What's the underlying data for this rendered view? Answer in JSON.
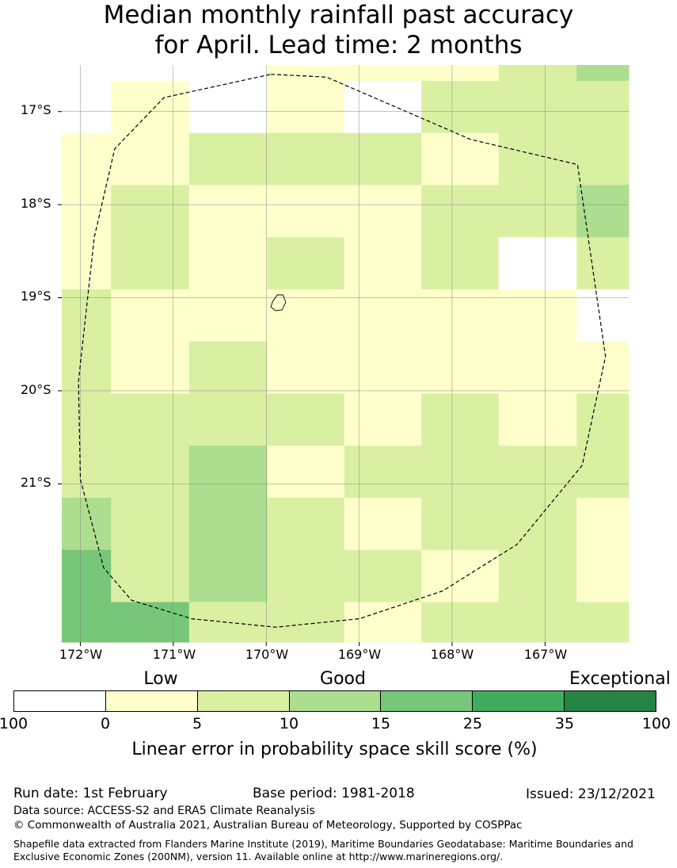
{
  "title": {
    "line1": "Median monthly rainfall past accuracy",
    "line2": "for April. Lead time: 2 months"
  },
  "map": {
    "lat_labels": [
      "17°S",
      "18°S",
      "19°S",
      "20°S",
      "21°S"
    ],
    "lon_labels": [
      "172°W",
      "171°W",
      "170°W",
      "169°W",
      "168°W",
      "167°W"
    ],
    "lon_range": [
      -172.2,
      -166.1
    ],
    "lat_range": [
      -22.7,
      -16.5
    ],
    "cell_rows_top_lat": [
      -16.5,
      -16.67,
      -17.23,
      -17.79,
      -18.35,
      -18.91,
      -19.47,
      -20.03,
      -20.59,
      -21.15,
      -21.71,
      -22.27,
      -22.7
    ],
    "cell_cols_left_lon": [
      -172.2,
      -171.67,
      -170.83,
      -169.99,
      -169.16,
      -168.33,
      -167.5,
      -166.66,
      -166.1
    ],
    "cell_categories": [
      [
        0,
        0,
        0,
        1,
        1,
        1,
        2,
        3
      ],
      [
        0,
        1,
        0,
        1,
        0,
        2,
        2,
        2
      ],
      [
        1,
        1,
        2,
        2,
        2,
        1,
        2,
        2
      ],
      [
        1,
        2,
        1,
        1,
        1,
        2,
        2,
        3
      ],
      [
        1,
        2,
        1,
        2,
        1,
        2,
        0,
        2
      ],
      [
        2,
        1,
        1,
        1,
        1,
        1,
        1,
        0
      ],
      [
        2,
        1,
        2,
        1,
        1,
        1,
        1,
        1
      ],
      [
        2,
        2,
        2,
        2,
        1,
        2,
        1,
        2
      ],
      [
        2,
        2,
        3,
        1,
        2,
        2,
        2,
        2
      ],
      [
        3,
        2,
        3,
        2,
        1,
        2,
        2,
        1
      ],
      [
        4,
        2,
        3,
        2,
        2,
        1,
        2,
        1
      ],
      [
        4,
        4,
        2,
        2,
        1,
        2,
        2,
        2
      ]
    ],
    "eez_boundary_lonlat": [
      [
        -169.95,
        -16.6
      ],
      [
        -169.35,
        -16.63
      ],
      [
        -167.8,
        -17.3
      ],
      [
        -166.65,
        -17.57
      ],
      [
        -166.35,
        -19.63
      ],
      [
        -166.6,
        -20.8
      ],
      [
        -167.3,
        -21.65
      ],
      [
        -168.1,
        -22.15
      ],
      [
        -169.0,
        -22.45
      ],
      [
        -169.9,
        -22.54
      ],
      [
        -170.8,
        -22.45
      ],
      [
        -171.45,
        -22.25
      ],
      [
        -171.75,
        -21.9
      ],
      [
        -172.0,
        -20.95
      ],
      [
        -172.02,
        -19.9
      ],
      [
        -171.85,
        -18.35
      ],
      [
        -171.63,
        -17.4
      ],
      [
        -171.1,
        -16.85
      ],
      [
        -169.95,
        -16.6
      ]
    ],
    "island_lonlat": [
      [
        -169.88,
        -18.97
      ],
      [
        -169.82,
        -18.97
      ],
      [
        -169.79,
        -19.05
      ],
      [
        -169.83,
        -19.13
      ],
      [
        -169.9,
        -19.14
      ],
      [
        -169.95,
        -19.1
      ],
      [
        -169.93,
        -19.04
      ],
      [
        -169.88,
        -18.97
      ]
    ]
  },
  "legend": {
    "category_labels": [
      "Low",
      "Good",
      "Exceptional"
    ],
    "ticks": [
      "100",
      "0",
      "5",
      "10",
      "15",
      "25",
      "35",
      "100"
    ],
    "colors": [
      "#ffffff",
      "#ffffcc",
      "#d9f0a3",
      "#addd8e",
      "#78c679",
      "#41ab5d",
      "#238443"
    ],
    "label": "Linear error in probability space skill score (%)"
  },
  "footer": {
    "run_date": "Run date: 1st February",
    "base_period": "Base period: 1981-2018",
    "issued": "Issued: 23/12/2021",
    "data_source": "Data source: ACCESS-S2 and ERA5 Climate Reanalysis",
    "copyright": "© Commonwealth of Australia 2021, Australian Bureau of Meteorology, Supported by COSPPac",
    "shapefile": "Shapefile data extracted from Flanders Marine Institute (2019), Maritime Boundaries Geodatabase: Maritime Boundaries and Exclusive Economic Zones (200NM), version 11. Available online at http://www.marineregions.org/."
  }
}
